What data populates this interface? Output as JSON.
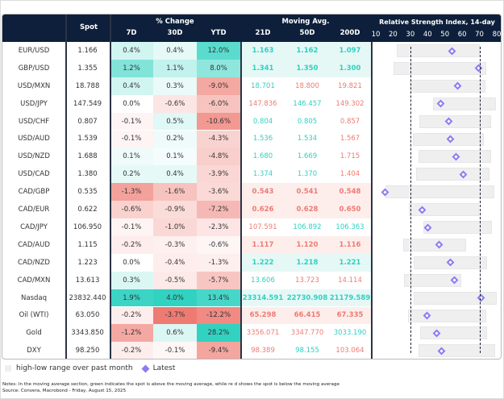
{
  "header": {
    "spot": "Spot",
    "pct_change": "% Change",
    "d7": "7D",
    "d30": "30D",
    "ytd": "YTD",
    "moving_avg": "Moving Avg.",
    "ma21": "21D",
    "ma50": "50D",
    "ma200": "200D",
    "rsi_title": "Relative Strength Index, 14-day"
  },
  "colors": {
    "green": "#2ed1c0",
    "red": "#ee7b72",
    "marker": "#8b7cf0",
    "range": "#efefef",
    "header_bg": "#0d1f3a"
  },
  "chart_data": {
    "type": "table",
    "rsi_axis": {
      "ticks": [
        10,
        20,
        30,
        40,
        50,
        60,
        70,
        80
      ],
      "range": [
        10,
        80
      ],
      "reference_lines": [
        30,
        70
      ]
    },
    "rows": [
      {
        "name": "EUR/USD",
        "spot": "1.166",
        "spot_v": 1.166,
        "d7": 0.4,
        "d30": 0.4,
        "ytd": 12.0,
        "ma21": "1.163",
        "ma50": "1.162",
        "ma200": "1.097",
        "rsi_low": 22,
        "rsi_high": 70,
        "rsi": 54
      },
      {
        "name": "GBP/USD",
        "spot": "1.355",
        "spot_v": 1.355,
        "d7": 1.2,
        "d30": 1.1,
        "ytd": 8.0,
        "ma21": "1.341",
        "ma50": "1.350",
        "ma200": "1.300",
        "rsi_low": 20.4,
        "rsi_high": 74,
        "rsi": 69.4
      },
      {
        "name": "USD/MXN",
        "spot": "18.788",
        "spot_v": 18.788,
        "d7": 0.4,
        "d30": 0.3,
        "ytd": -9.0,
        "ma21": "18.701",
        "ma50": "18.800",
        "ma200": "19.821",
        "rsi_low": 30.2,
        "rsi_high": 73.3,
        "rsi": 57.2
      },
      {
        "name": "USD/JPY",
        "spot": "147.549",
        "spot_v": 147.549,
        "d7": 0.0,
        "d30": -0.6,
        "ytd": -6.0,
        "ma21": "147.836",
        "ma50": "146.457",
        "ma200": "149.302",
        "rsi_low": 43,
        "rsi_high": 79.7,
        "rsi": 47.6
      },
      {
        "name": "USD/CHF",
        "spot": "0.807",
        "spot_v": 0.807,
        "d7": -0.1,
        "d30": 0.5,
        "ytd": -10.6,
        "ma21": "0.804",
        "ma50": "0.805",
        "ma200": "0.857",
        "rsi_low": 35.3,
        "rsi_high": 76.8,
        "rsi": 52.2
      },
      {
        "name": "USD/AUD",
        "spot": "1.539",
        "spot_v": 1.539,
        "d7": -0.1,
        "d30": 0.2,
        "ytd": -4.3,
        "ma21": "1.536",
        "ma50": "1.534",
        "ma200": "1.567",
        "rsi_low": 31.3,
        "rsi_high": 72.4,
        "rsi": 53.1
      },
      {
        "name": "USD/NZD",
        "spot": "1.688",
        "spot_v": 1.688,
        "d7": 0.1,
        "d30": 0.1,
        "ytd": -4.8,
        "ma21": "1.680",
        "ma50": "1.669",
        "ma200": "1.715",
        "rsi_low": 34.5,
        "rsi_high": 76.5,
        "rsi": 56.3
      },
      {
        "name": "USD/CAD",
        "spot": "1.380",
        "spot_v": 1.38,
        "d7": 0.2,
        "d30": 0.4,
        "ytd": -3.9,
        "ma21": "1.374",
        "ma50": "1.370",
        "ma200": "1.404",
        "rsi_low": 33.5,
        "rsi_high": 75.7,
        "rsi": 60.7
      },
      {
        "name": "CAD/GBP",
        "spot": "0.535",
        "spot_v": 0.535,
        "d7": -1.3,
        "d30": -1.6,
        "ytd": -3.6,
        "ma21": "0.543",
        "ma50": "0.541",
        "ma200": "0.548",
        "rsi_low": 15.4,
        "rsi_high": 78.7,
        "rsi": 15.4
      },
      {
        "name": "CAD/EUR",
        "spot": "0.622",
        "spot_v": 0.622,
        "d7": -0.6,
        "d30": -0.9,
        "ytd": -7.2,
        "ma21": "0.626",
        "ma50": "0.628",
        "ma200": "0.650",
        "rsi_low": 29.3,
        "rsi_high": 69.9,
        "rsi": 37
      },
      {
        "name": "CAD/JPY",
        "spot": "106.950",
        "spot_v": 106.95,
        "d7": -0.1,
        "d30": -1.0,
        "ytd": -2.3,
        "ma21": "107.591",
        "ma50": "106.892",
        "ma200": "106.363",
        "rsi_low": 37.3,
        "rsi_high": 77.1,
        "rsi": 40.3
      },
      {
        "name": "CAD/AUD",
        "spot": "1.115",
        "spot_v": 1.115,
        "d7": -0.2,
        "d30": -0.3,
        "ytd": -0.6,
        "ma21": "1.117",
        "ma50": "1.120",
        "ma200": "1.116",
        "rsi_low": 25.8,
        "rsi_high": 62.1,
        "rsi": 46.8
      },
      {
        "name": "CAD/NZD",
        "spot": "1.223",
        "spot_v": 1.223,
        "d7": 0.0,
        "d30": -0.4,
        "ytd": -1.3,
        "ma21": "1.222",
        "ma50": "1.218",
        "ma200": "1.221",
        "rsi_low": 32,
        "rsi_high": 74.5,
        "rsi": 53
      },
      {
        "name": "CAD/MXN",
        "spot": "13.613",
        "spot_v": 13.613,
        "d7": 0.3,
        "d30": -0.5,
        "ytd": -5.7,
        "ma21": "13.606",
        "ma50": "13.723",
        "ma200": "14.114",
        "rsi_low": 26.4,
        "rsi_high": 59.6,
        "rsi": 55.3
      },
      {
        "name": "Nasdaq",
        "spot": "23832.440",
        "spot_v": 23832.44,
        "d7": 1.9,
        "d30": 4.0,
        "ytd": 13.4,
        "ma21": "23314.591",
        "ma50": "22730.908",
        "ma200": "21179.589",
        "rsi_low": 31.8,
        "rsi_high": 80,
        "rsi": 70.7
      },
      {
        "name": "Oil (WTI)",
        "spot": "63.050",
        "spot_v": 63.05,
        "d7": -0.2,
        "d30": -3.7,
        "ytd": -12.2,
        "ma21": "65.298",
        "ma50": "66.415",
        "ma200": "67.335",
        "rsi_low": 28.8,
        "rsi_high": 74,
        "rsi": 39.5
      },
      {
        "name": "Gold",
        "spot": "3343.850",
        "spot_v": 3343.85,
        "d7": -1.2,
        "d30": 0.6,
        "ytd": 28.2,
        "ma21": "3356.071",
        "ma50": "3347.770",
        "ma200": "3033.190",
        "rsi_low": 35.7,
        "rsi_high": 74.5,
        "rsi": 45.2
      },
      {
        "name": "DXY",
        "spot": "98.250",
        "spot_v": 98.25,
        "d7": -0.2,
        "d30": -0.1,
        "ytd": -9.4,
        "ma21": "98.389",
        "ma50": "98.155",
        "ma200": "103.064",
        "rsi_low": 34.8,
        "rsi_high": 79,
        "rsi": 48.2
      }
    ]
  },
  "legend": {
    "range": "high-low range over past month",
    "latest": "Latest"
  },
  "notes": {
    "line1": "Notes: In the moving average section, green indicates the spot is above the moving average, while re    d shows the spot is below   the moving average",
    "line2": "Source: Convera, Macrobond - Friday, August 15, 2025"
  }
}
